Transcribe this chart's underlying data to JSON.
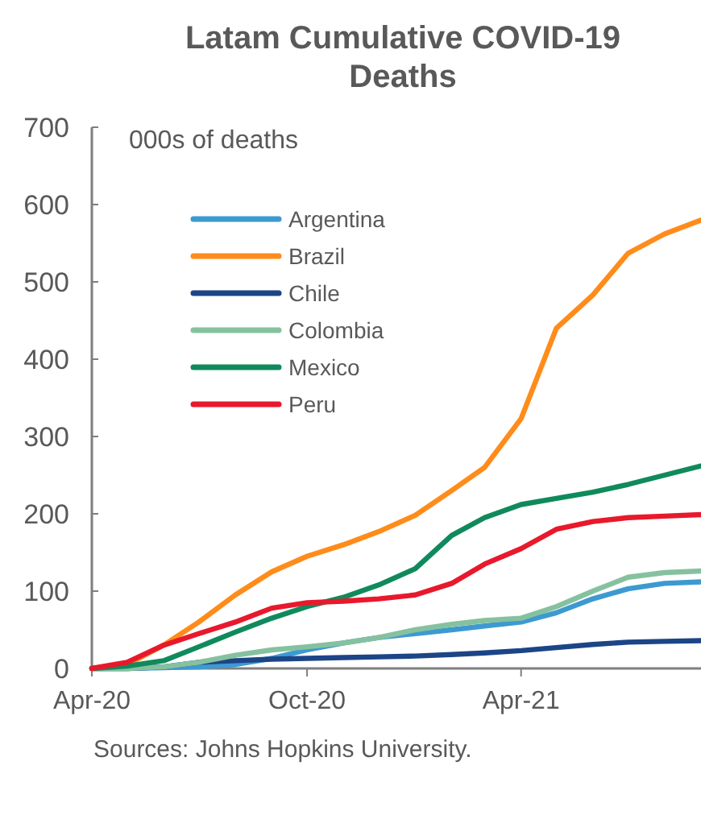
{
  "chart_data": {
    "type": "line",
    "title": "Latam Cumulative COVID-19 Deaths",
    "ylabel": "000s of deaths",
    "x": [
      "2020-04-01",
      "2020-05-01",
      "2020-06-01",
      "2020-07-01",
      "2020-08-01",
      "2020-09-01",
      "2020-10-01",
      "2020-11-01",
      "2020-12-01",
      "2021-01-01",
      "2021-02-01",
      "2021-03-01",
      "2021-04-01",
      "2021-05-01",
      "2021-06-01",
      "2021-07-01",
      "2021-08-01",
      "2021-09-01"
    ],
    "xlim": [
      "2020-04-01",
      "2021-09-01"
    ],
    "xticks": [
      {
        "value": "2020-04-01",
        "label": "Apr-20"
      },
      {
        "value": "2020-10-01",
        "label": "Oct-20"
      },
      {
        "value": "2021-04-01",
        "label": "Apr-21"
      }
    ],
    "ylim": [
      0,
      700
    ],
    "yticks": [
      0,
      100,
      200,
      300,
      400,
      500,
      600,
      700
    ],
    "legend": "top left",
    "marker": "none",
    "line_style": "solid",
    "grid": false,
    "series": [
      {
        "name": "Argentina",
        "color": "#3d9ad1",
        "values": [
          0,
          0,
          1,
          2,
          5,
          13,
          24,
          33,
          40,
          45,
          50,
          55,
          60,
          72,
          90,
          103,
          110,
          112
        ]
      },
      {
        "name": "Brazil",
        "color": "#ff8c1a",
        "values": [
          0,
          5,
          30,
          60,
          95,
          125,
          145,
          160,
          177,
          198,
          230,
          260,
          323,
          440,
          483,
          537,
          562,
          580
        ]
      },
      {
        "name": "Chile",
        "color": "#1c4587",
        "values": [
          0,
          0,
          2,
          8,
          10,
          12,
          13,
          14,
          15,
          16,
          18,
          20,
          23,
          27,
          31,
          34,
          35,
          36
        ]
      },
      {
        "name": "Colombia",
        "color": "#86c19f",
        "values": [
          0,
          0,
          2,
          8,
          17,
          24,
          28,
          33,
          40,
          50,
          57,
          62,
          65,
          80,
          100,
          118,
          124,
          126
        ]
      },
      {
        "name": "Mexico",
        "color": "#108a5c",
        "values": [
          0,
          3,
          10,
          28,
          47,
          65,
          80,
          92,
          108,
          129,
          172,
          195,
          212,
          220,
          228,
          238,
          250,
          262
        ]
      },
      {
        "name": "Peru",
        "color": "#e8192c",
        "values": [
          0,
          8,
          30,
          45,
          60,
          78,
          85,
          87,
          90,
          95,
          110,
          135,
          155,
          180,
          190,
          195,
          197,
          199
        ]
      }
    ],
    "annotations": [
      "Sources: Johns Hopkins University."
    ]
  }
}
